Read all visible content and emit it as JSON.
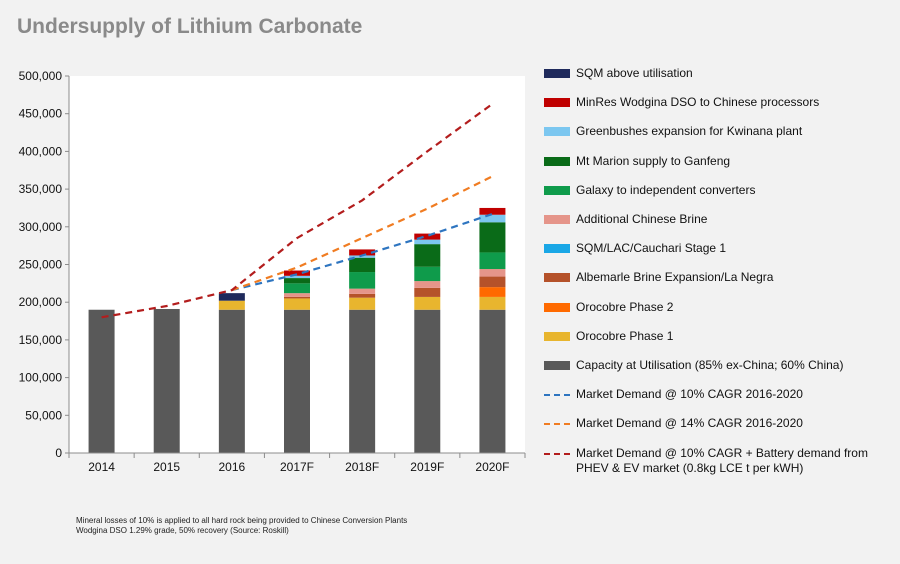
{
  "title": "Undersupply of Lithium Carbonate",
  "footnotes": [
    "Mineral losses of 10% is applied to all hard rock being provided to Chinese Conversion Plants",
    "Wodgina DSO 1.29% grade, 50% recovery (Source: Roskill)"
  ],
  "chart_data": {
    "type": "bar",
    "stacked": true,
    "title": "Undersupply of Lithium Carbonate",
    "xlabel": "",
    "ylabel": "",
    "ylim": [
      0,
      500000
    ],
    "yticks": [
      0,
      50000,
      100000,
      150000,
      200000,
      250000,
      300000,
      350000,
      400000,
      450000,
      500000
    ],
    "ytick_labels": [
      "0",
      "50,000",
      "100,000",
      "150,000",
      "200,000",
      "250,000",
      "300,000",
      "350,000",
      "400,000",
      "450,000",
      "500,000"
    ],
    "grid": false,
    "legend_position": "right",
    "categories": [
      "2014",
      "2015",
      "2016",
      "2017F",
      "2018F",
      "2019F",
      "2020F"
    ],
    "series": [
      {
        "name": "Capacity at Utilisation  (85% ex-China; 60% China)",
        "color": "#595959",
        "values": [
          190000,
          191000,
          190000,
          190000,
          190000,
          190000,
          190000
        ]
      },
      {
        "name": "Orocobre Phase 1",
        "color": "#e8b52e",
        "values": [
          0,
          0,
          12000,
          15000,
          16000,
          17000,
          17000
        ]
      },
      {
        "name": "Orocobre Phase 2",
        "color": "#ff6a00",
        "values": [
          0,
          0,
          0,
          0,
          0,
          0,
          13000
        ]
      },
      {
        "name": "Albemarle Brine Expansion/La Negra",
        "color": "#b5522a",
        "values": [
          0,
          0,
          0,
          2000,
          5000,
          12000,
          14000
        ]
      },
      {
        "name": "SQM/LAC/Cauchari Stage 1",
        "color": "#1aa7e6",
        "values": [
          0,
          0,
          0,
          0,
          0,
          0,
          0
        ]
      },
      {
        "name": "Additional Chinese Brine",
        "color": "#e5958a",
        "values": [
          0,
          0,
          0,
          5000,
          7000,
          9000,
          10000
        ]
      },
      {
        "name": "Galaxy to independent converters",
        "color": "#0f9b4b",
        "values": [
          0,
          0,
          0,
          13000,
          22000,
          19000,
          22000
        ]
      },
      {
        "name": "Mt Marion supply to Ganfeng",
        "color": "#0a6b18",
        "values": [
          0,
          0,
          0,
          7000,
          19000,
          30000,
          40000
        ]
      },
      {
        "name": "Greenbushes expansion for Kwinana plant",
        "color": "#7cc7f0",
        "values": [
          0,
          0,
          0,
          3000,
          3000,
          6000,
          10000
        ]
      },
      {
        "name": "MinRes Wodgina  DSO to Chinese processors",
        "color": "#c00000",
        "values": [
          0,
          0,
          0,
          7000,
          8000,
          8000,
          9000
        ]
      },
      {
        "name": "SQM above utilisation",
        "color": "#1f2a5c",
        "values": [
          0,
          0,
          10000,
          0,
          0,
          0,
          0
        ]
      }
    ],
    "lines": [
      {
        "name": "Market Demand @ 10% CAGR 2016-2020",
        "color": "#2e75c0",
        "values": [
          null,
          null,
          216000,
          237000,
          262000,
          288000,
          317000
        ]
      },
      {
        "name": "Market Demand @ 14% CAGR 2016-2020",
        "color": "#f07c22",
        "values": [
          null,
          null,
          216000,
          246000,
          285000,
          324000,
          367000
        ]
      },
      {
        "name": "Market Demand @ 10% CAGR + Battery demand from PHEV & EV market (0.8kg LCE t per kWH)",
        "color": "#b31d1d",
        "values": [
          180000,
          195000,
          216000,
          285000,
          335000,
          400000,
          463000
        ]
      }
    ]
  },
  "legend": {
    "items": [
      {
        "label": "SQM above utilisation",
        "color": "#1f2a5c",
        "kind": "bar"
      },
      {
        "label": "MinRes Wodgina  DSO to Chinese processors",
        "color": "#c00000",
        "kind": "bar"
      },
      {
        "label": "Greenbushes expansion for Kwinana plant",
        "color": "#7cc7f0",
        "kind": "bar"
      },
      {
        "label": "Mt Marion supply to Ganfeng",
        "color": "#0a6b18",
        "kind": "bar"
      },
      {
        "label": "Galaxy to independent converters",
        "color": "#0f9b4b",
        "kind": "bar"
      },
      {
        "label": "Additional Chinese Brine",
        "color": "#e5958a",
        "kind": "bar"
      },
      {
        "label": "SQM/LAC/Cauchari Stage 1",
        "color": "#1aa7e6",
        "kind": "bar"
      },
      {
        "label": "Albemarle Brine Expansion/La Negra",
        "color": "#b5522a",
        "kind": "bar"
      },
      {
        "label": "Orocobre Phase 2",
        "color": "#ff6a00",
        "kind": "bar"
      },
      {
        "label": "Orocobre Phase 1",
        "color": "#e8b52e",
        "kind": "bar"
      },
      {
        "label": "Capacity at Utilisation  (85% ex-China; 60% China)",
        "color": "#595959",
        "kind": "bar"
      },
      {
        "label": "Market Demand @ 10% CAGR 2016-2020",
        "color": "#2e75c0",
        "kind": "line"
      },
      {
        "label": "Market Demand @ 14% CAGR 2016-2020",
        "color": "#f07c22",
        "kind": "line"
      },
      {
        "label": "Market Demand @ 10% CAGR + Battery demand from PHEV & EV market (0.8kg LCE t per kWH)",
        "color": "#b31d1d",
        "kind": "line"
      }
    ]
  }
}
